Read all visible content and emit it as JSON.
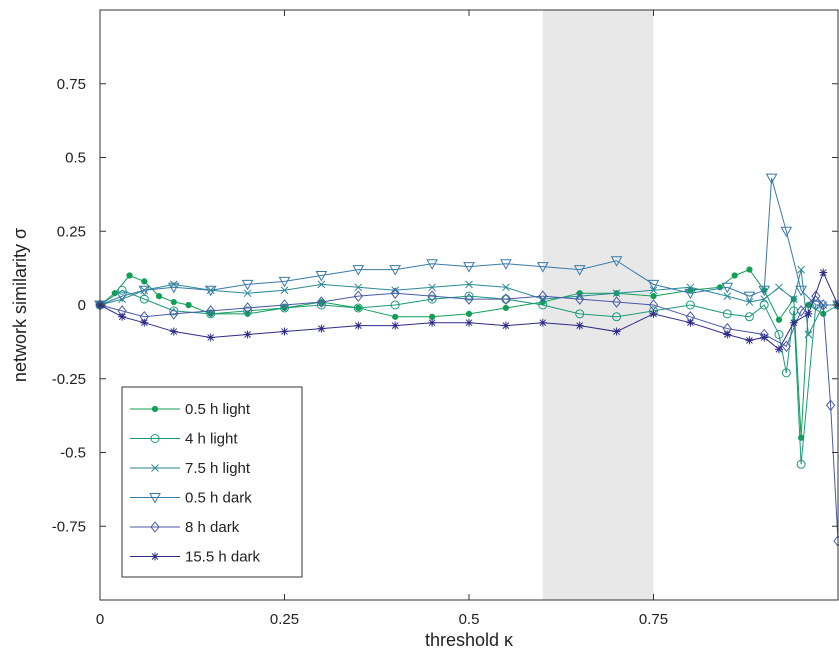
{
  "chart_data": {
    "type": "line",
    "xlabel": "threshold  κ",
    "ylabel": "network similarity  σ",
    "xlim": [
      0,
      1
    ],
    "ylim": [
      -1,
      1
    ],
    "xticks": [
      0,
      0.25,
      0.5,
      0.75
    ],
    "xtick_labels": [
      "0",
      "0.25",
      "0.5",
      "0.75"
    ],
    "yticks": [
      0.75,
      0.5,
      0.25,
      0,
      -0.25,
      -0.5,
      -0.75
    ],
    "ytick_labels": [
      "0.75",
      "0.5",
      "0.25",
      "0",
      "-0.25",
      "-0.5",
      "-0.75"
    ],
    "grid": false,
    "legend_position": "bottom-left",
    "shaded_region": {
      "x_start": 0.6,
      "x_end": 0.75,
      "color": "#e8e8e8"
    },
    "series": [
      {
        "name": "0.5 h light",
        "color": "#0fa055",
        "marker": "dot",
        "x": [
          0.0,
          0.02,
          0.04,
          0.06,
          0.08,
          0.1,
          0.12,
          0.15,
          0.2,
          0.25,
          0.3,
          0.35,
          0.4,
          0.45,
          0.5,
          0.55,
          0.6,
          0.65,
          0.7,
          0.75,
          0.8,
          0.84,
          0.86,
          0.88,
          0.9,
          0.92,
          0.94,
          0.95,
          0.96,
          0.98,
          1.0
        ],
        "y": [
          0.0,
          0.04,
          0.1,
          0.08,
          0.03,
          0.01,
          0.0,
          -0.03,
          -0.03,
          -0.01,
          0.01,
          -0.01,
          -0.04,
          -0.04,
          -0.03,
          -0.01,
          0.01,
          0.04,
          0.04,
          0.03,
          0.05,
          0.06,
          0.1,
          0.12,
          0.05,
          -0.05,
          0.02,
          -0.45,
          0.0,
          -0.03,
          0.0
        ]
      },
      {
        "name": "4 h light",
        "color": "#1a9a7a",
        "marker": "circle",
        "x": [
          0.0,
          0.03,
          0.06,
          0.1,
          0.15,
          0.2,
          0.25,
          0.3,
          0.35,
          0.4,
          0.45,
          0.5,
          0.55,
          0.6,
          0.65,
          0.7,
          0.75,
          0.8,
          0.85,
          0.88,
          0.9,
          0.92,
          0.93,
          0.94,
          0.95,
          0.97,
          1.0
        ],
        "y": [
          0.0,
          0.05,
          0.02,
          -0.02,
          -0.03,
          -0.02,
          -0.01,
          0.0,
          -0.01,
          0.0,
          0.02,
          0.03,
          0.02,
          0.0,
          -0.03,
          -0.04,
          -0.02,
          0.0,
          -0.03,
          -0.04,
          0.0,
          -0.1,
          -0.23,
          -0.02,
          -0.54,
          0.0,
          0.0
        ]
      },
      {
        "name": "7.5 h light",
        "color": "#2a8a96",
        "marker": "x",
        "x": [
          0.0,
          0.03,
          0.06,
          0.1,
          0.15,
          0.2,
          0.25,
          0.3,
          0.35,
          0.4,
          0.45,
          0.5,
          0.55,
          0.6,
          0.65,
          0.7,
          0.75,
          0.8,
          0.85,
          0.88,
          0.9,
          0.92,
          0.94,
          0.95,
          0.96,
          0.98,
          1.0
        ],
        "y": [
          0.0,
          0.02,
          0.05,
          0.07,
          0.05,
          0.04,
          0.05,
          0.07,
          0.06,
          0.05,
          0.06,
          0.07,
          0.06,
          0.02,
          0.03,
          0.04,
          0.05,
          0.06,
          0.03,
          0.01,
          0.02,
          0.06,
          0.02,
          0.12,
          -0.1,
          0.0,
          0.0
        ]
      },
      {
        "name": "0.5 h dark",
        "color": "#3a7aaa",
        "marker": "triangle-down",
        "x": [
          0.0,
          0.03,
          0.06,
          0.1,
          0.15,
          0.2,
          0.25,
          0.3,
          0.35,
          0.4,
          0.45,
          0.5,
          0.55,
          0.6,
          0.65,
          0.7,
          0.75,
          0.8,
          0.85,
          0.88,
          0.9,
          0.91,
          0.93,
          0.95,
          0.97,
          1.0
        ],
        "y": [
          0.0,
          0.03,
          0.05,
          0.06,
          0.05,
          0.07,
          0.08,
          0.1,
          0.12,
          0.12,
          0.14,
          0.13,
          0.14,
          0.13,
          0.12,
          0.15,
          0.07,
          0.04,
          0.06,
          0.03,
          0.05,
          0.43,
          0.25,
          0.05,
          0.0,
          0.0
        ]
      },
      {
        "name": "8 h dark",
        "color": "#4a5aa8",
        "marker": "diamond",
        "x": [
          0.0,
          0.03,
          0.06,
          0.1,
          0.15,
          0.2,
          0.25,
          0.3,
          0.35,
          0.4,
          0.45,
          0.5,
          0.55,
          0.6,
          0.65,
          0.7,
          0.75,
          0.8,
          0.85,
          0.9,
          0.93,
          0.95,
          0.97,
          0.98,
          0.99,
          1.0
        ],
        "y": [
          0.0,
          -0.02,
          -0.04,
          -0.03,
          -0.02,
          -0.01,
          0.0,
          0.01,
          0.03,
          0.04,
          0.03,
          0.02,
          0.02,
          0.03,
          0.02,
          0.01,
          0.0,
          -0.04,
          -0.08,
          -0.1,
          -0.14,
          -0.02,
          0.03,
          0.0,
          -0.34,
          -0.8
        ]
      },
      {
        "name": "15.5 h dark",
        "color": "#2e2a8a",
        "marker": "star",
        "x": [
          0.0,
          0.03,
          0.06,
          0.1,
          0.15,
          0.2,
          0.25,
          0.3,
          0.35,
          0.4,
          0.45,
          0.5,
          0.55,
          0.6,
          0.65,
          0.7,
          0.75,
          0.8,
          0.85,
          0.88,
          0.9,
          0.92,
          0.94,
          0.96,
          0.98,
          1.0
        ],
        "y": [
          0.0,
          -0.04,
          -0.06,
          -0.09,
          -0.11,
          -0.1,
          -0.09,
          -0.08,
          -0.07,
          -0.07,
          -0.06,
          -0.06,
          -0.07,
          -0.06,
          -0.07,
          -0.09,
          -0.03,
          -0.06,
          -0.1,
          -0.12,
          -0.11,
          -0.15,
          -0.06,
          -0.03,
          0.11,
          0.0
        ]
      }
    ]
  }
}
